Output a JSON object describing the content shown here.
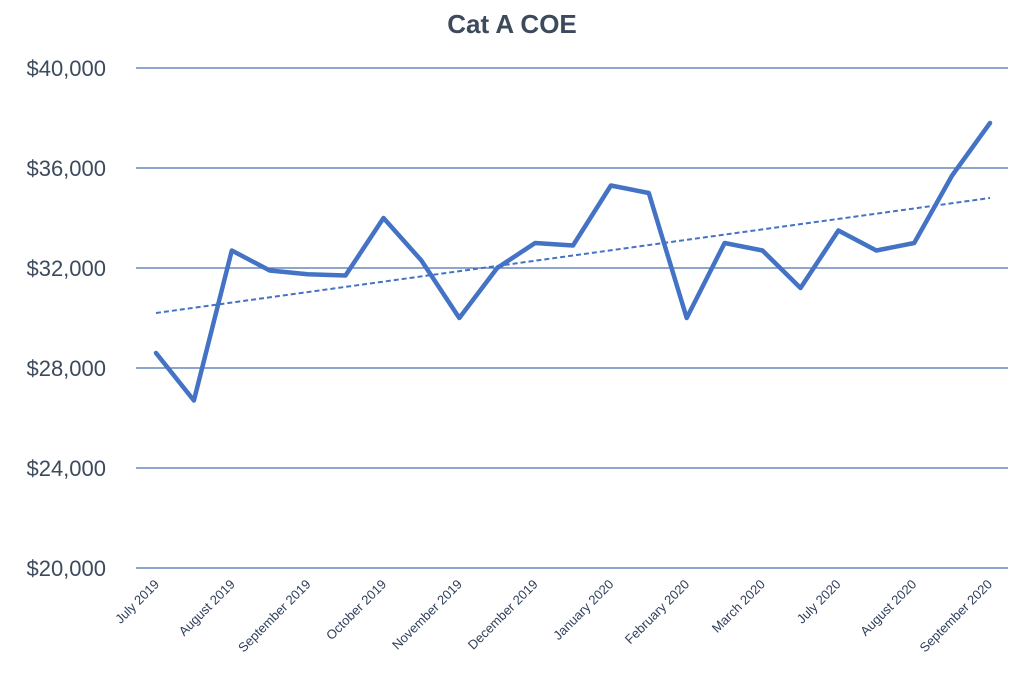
{
  "chart_data": {
    "type": "line",
    "title": "Cat A COE",
    "xlabel": "",
    "ylabel": "",
    "ylim": [
      20000,
      40000
    ],
    "y_ticks": [
      20000,
      24000,
      28000,
      32000,
      36000,
      40000
    ],
    "y_tick_labels": [
      "$20,000",
      "$24,000",
      "$28,000",
      "$32,000",
      "$36,000",
      "$40,000"
    ],
    "x_tick_labels": [
      "July 2019",
      "August 2019",
      "September 2019",
      "October 2019",
      "November 2019",
      "December 2019",
      "January 2020",
      "February 2020",
      "March 2020",
      "July 2020",
      "August 2020",
      "September 2020"
    ],
    "series": [
      {
        "values": [
          28600,
          26700,
          32700,
          31900,
          31750,
          31700,
          34000,
          32300,
          30000,
          32000,
          33000,
          32900,
          35300,
          35000,
          30000,
          33000,
          32700,
          31200,
          33500,
          32700,
          33000,
          35700,
          37800
        ],
        "color": "#4472c4"
      }
    ],
    "trendline": {
      "style": "dashed",
      "color": "#4472c4",
      "start": 30200,
      "end": 34800
    },
    "grid": true,
    "legend": "none"
  }
}
